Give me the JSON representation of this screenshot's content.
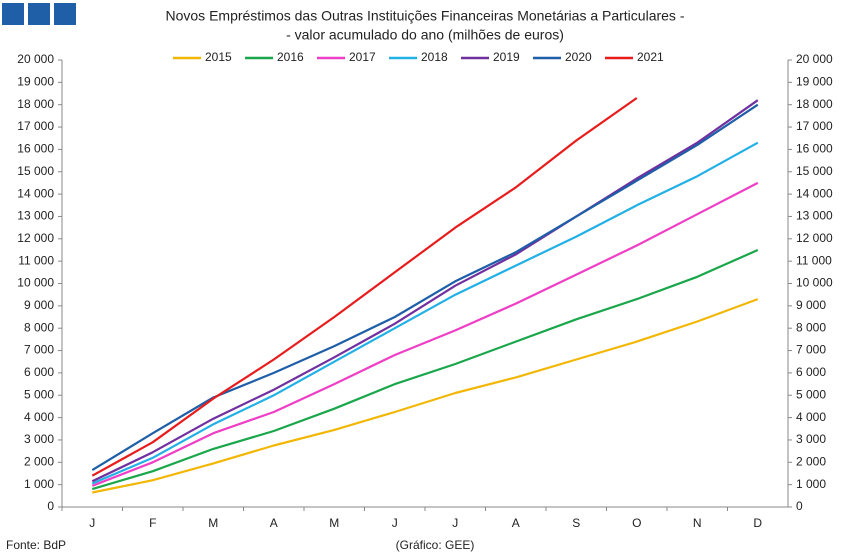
{
  "chart_data": {
    "type": "line",
    "title": [
      "Novos Empréstimos das Outras Instituições Financeiras Monetárias a Particulares -",
      "- valor acumulado do ano (milhões de euros)"
    ],
    "categories": [
      "J",
      "F",
      "M",
      "A",
      "M",
      "J",
      "J",
      "A",
      "S",
      "O",
      "N",
      "D"
    ],
    "series": [
      {
        "name": "2015",
        "color": "#f2b705",
        "values": [
          650,
          1200,
          1950,
          2750,
          3450,
          4250,
          5100,
          5800,
          6600,
          7400,
          8300,
          9300
        ]
      },
      {
        "name": "2016",
        "color": "#1aa64a",
        "values": [
          800,
          1600,
          2600,
          3400,
          4400,
          5500,
          6400,
          7400,
          8400,
          9300,
          10300,
          11500
        ]
      },
      {
        "name": "2017",
        "color": "#ee3fc6",
        "values": [
          950,
          2000,
          3300,
          4250,
          5500,
          6800,
          7900,
          9100,
          10400,
          11700,
          13100,
          14500
        ]
      },
      {
        "name": "2018",
        "color": "#22b0e6",
        "values": [
          1050,
          2200,
          3700,
          5000,
          6500,
          8000,
          9500,
          10800,
          12100,
          13500,
          14800,
          16300
        ]
      },
      {
        "name": "2019",
        "color": "#7030a0",
        "values": [
          1150,
          2450,
          3950,
          5250,
          6700,
          8200,
          9900,
          11300,
          13000,
          14700,
          16300,
          18200
        ]
      },
      {
        "name": "2020",
        "color": "#1f5fa8",
        "values": [
          1650,
          3300,
          4900,
          6000,
          7200,
          8500,
          10100,
          11400,
          13000,
          14600,
          16200,
          18000
        ]
      },
      {
        "name": "2021",
        "color": "#e81c1c",
        "values": [
          1400,
          2900,
          4850,
          6600,
          8500,
          10500,
          12500,
          14300,
          16400,
          18300,
          null,
          null
        ]
      }
    ],
    "ylim": [
      0,
      20000
    ],
    "yticks": [
      0,
      {
        "value": 1000,
        "label": "1 000"
      },
      {
        "value": 2000,
        "label": "2 000"
      },
      {
        "value": 3000,
        "label": "3 000"
      },
      {
        "value": 4000,
        "label": "4 000"
      },
      {
        "value": 5000,
        "label": "5 000"
      },
      {
        "value": 6000,
        "label": "6 000"
      },
      {
        "value": 7000,
        "label": "7 000"
      },
      {
        "value": 8000,
        "label": "8 000"
      },
      {
        "value": 9000,
        "label": "9 000"
      },
      {
        "value": 10000,
        "label": "10 000"
      },
      {
        "value": 11000,
        "label": "11 000"
      },
      {
        "value": 12000,
        "label": "12 000"
      },
      {
        "value": 13000,
        "label": "13 000"
      },
      {
        "value": 14000,
        "label": "14 000"
      },
      {
        "value": 15000,
        "label": "15 000"
      },
      {
        "value": 16000,
        "label": "16 000"
      },
      {
        "value": 17000,
        "label": "17 000"
      },
      {
        "value": 18000,
        "label": "18 000"
      },
      {
        "value": 19000,
        "label": "19 000"
      },
      {
        "value": 20000,
        "label": "20 000"
      }
    ],
    "y2lim": [
      0,
      20000
    ],
    "y2ticks": [
      0,
      {
        "value": 1000,
        "label": "1 000"
      },
      {
        "value": 2000,
        "label": "2 000"
      },
      {
        "value": 3000,
        "label": "3 000"
      },
      {
        "value": 4000,
        "label": "4 000"
      },
      {
        "value": 5000,
        "label": "5 000"
      },
      {
        "value": 6000,
        "label": "6 000"
      },
      {
        "value": 7000,
        "label": "7 000"
      },
      {
        "value": 8000,
        "label": "8 000"
      },
      {
        "value": 9000,
        "label": "9 000"
      },
      {
        "value": 10000,
        "label": "10 000"
      },
      {
        "value": 11000,
        "label": "11 000"
      },
      {
        "value": 12000,
        "label": "12 000"
      },
      {
        "value": 13000,
        "label": "13 000"
      },
      {
        "value": 14000,
        "label": "14 000"
      },
      {
        "value": 15000,
        "label": "15 000"
      },
      {
        "value": 16000,
        "label": "16 000"
      },
      {
        "value": 17000,
        "label": "17 000"
      },
      {
        "value": 18000,
        "label": "18 000"
      },
      {
        "value": 19000,
        "label": "19 000"
      },
      {
        "value": 20000,
        "label": "20 000"
      }
    ],
    "grid": false,
    "legend": "top",
    "source": "Fonte: BdP",
    "credit": "(Gráfico: GEE)"
  }
}
